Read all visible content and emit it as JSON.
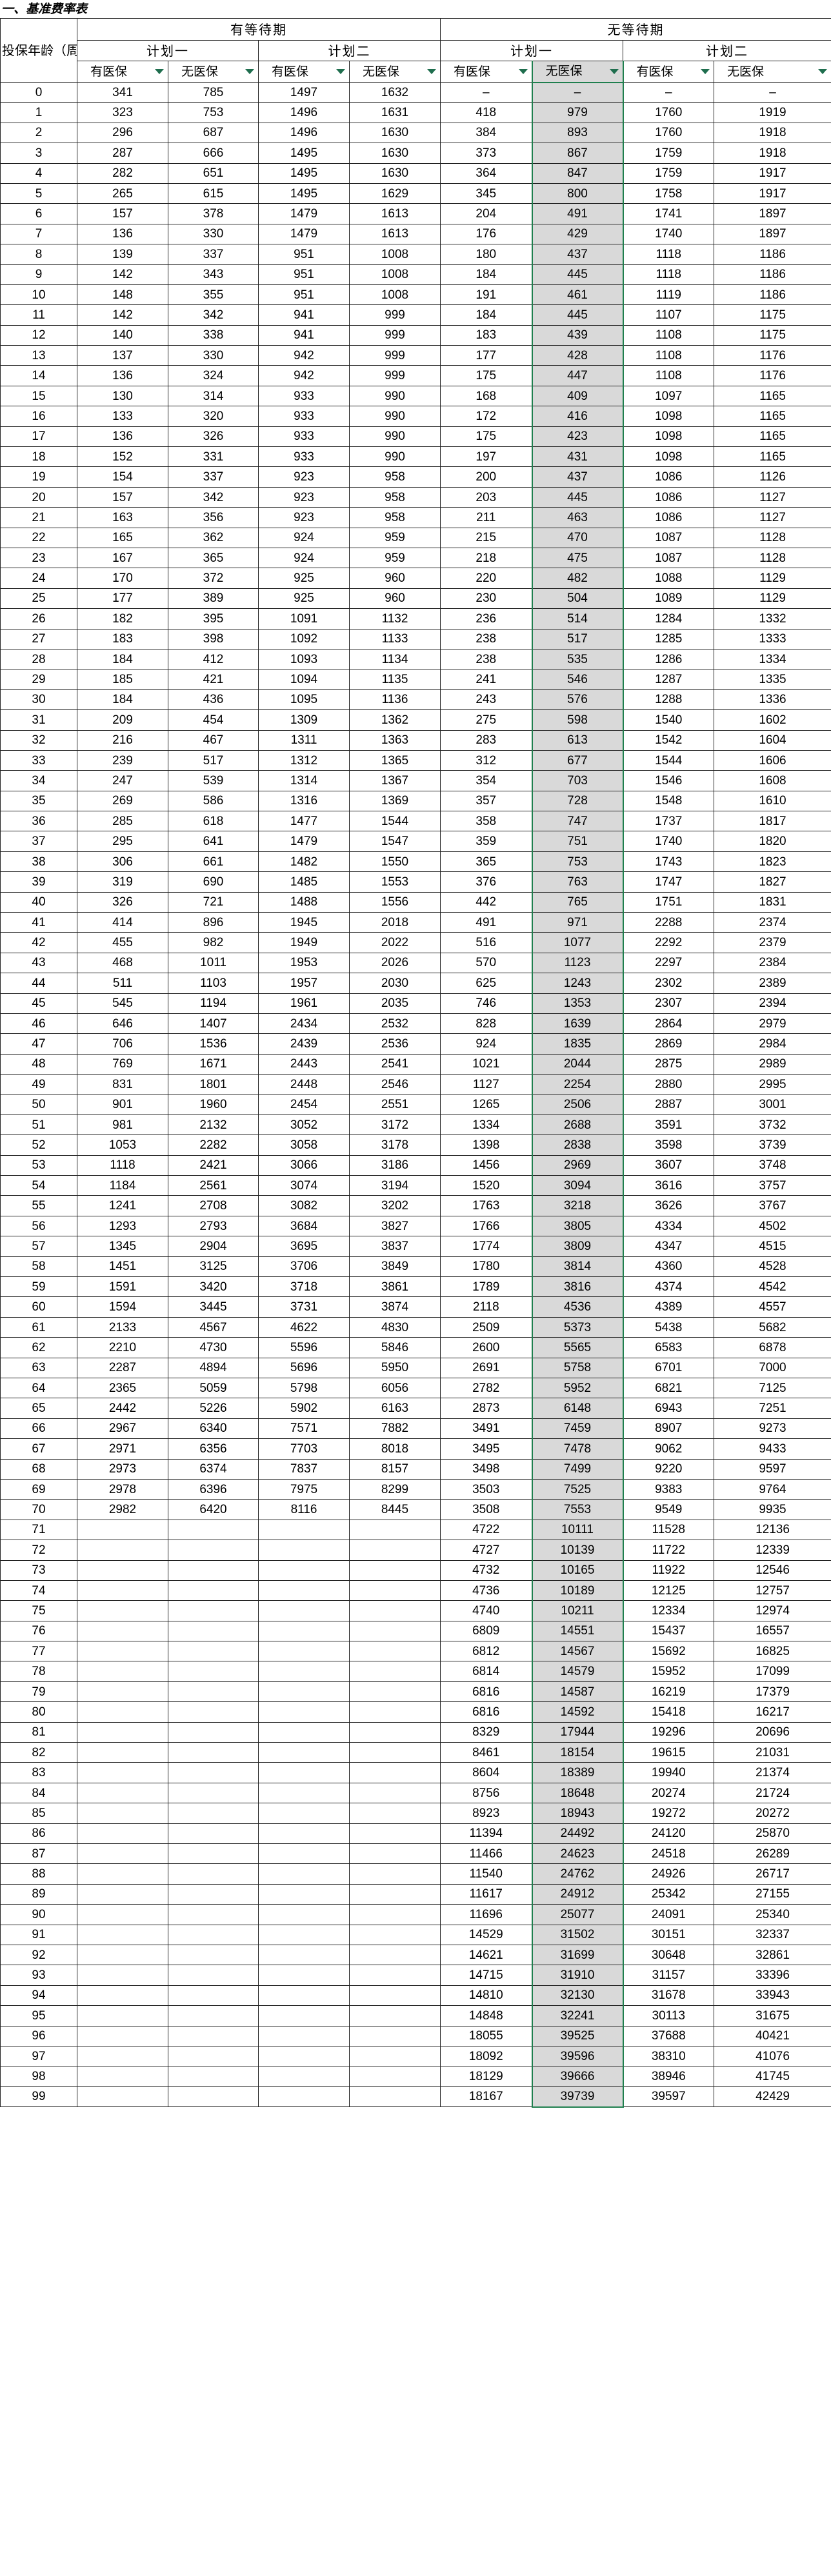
{
  "sheet": {
    "title": "一、基准费率表",
    "groups": [
      "有等待期",
      "无等待期"
    ],
    "plans": [
      "计划一",
      "计划二"
    ],
    "age_header": "投保年龄（周岁）",
    "sub_headers": [
      "有医保",
      "无医保"
    ]
  },
  "rows": [
    [
      "0",
      "341",
      "785",
      "1497",
      "1632",
      "–",
      "–",
      "–",
      "–"
    ],
    [
      "1",
      "323",
      "753",
      "1496",
      "1631",
      "418",
      "979",
      "1760",
      "1919"
    ],
    [
      "2",
      "296",
      "687",
      "1496",
      "1630",
      "384",
      "893",
      "1760",
      "1918"
    ],
    [
      "3",
      "287",
      "666",
      "1495",
      "1630",
      "373",
      "867",
      "1759",
      "1918"
    ],
    [
      "4",
      "282",
      "651",
      "1495",
      "1630",
      "364",
      "847",
      "1759",
      "1917"
    ],
    [
      "5",
      "265",
      "615",
      "1495",
      "1629",
      "345",
      "800",
      "1758",
      "1917"
    ],
    [
      "6",
      "157",
      "378",
      "1479",
      "1613",
      "204",
      "491",
      "1741",
      "1897"
    ],
    [
      "7",
      "136",
      "330",
      "1479",
      "1613",
      "176",
      "429",
      "1740",
      "1897"
    ],
    [
      "8",
      "139",
      "337",
      "951",
      "1008",
      "180",
      "437",
      "1118",
      "1186"
    ],
    [
      "9",
      "142",
      "343",
      "951",
      "1008",
      "184",
      "445",
      "1118",
      "1186"
    ],
    [
      "10",
      "148",
      "355",
      "951",
      "1008",
      "191",
      "461",
      "1119",
      "1186"
    ],
    [
      "11",
      "142",
      "342",
      "941",
      "999",
      "184",
      "445",
      "1107",
      "1175"
    ],
    [
      "12",
      "140",
      "338",
      "941",
      "999",
      "183",
      "439",
      "1108",
      "1175"
    ],
    [
      "13",
      "137",
      "330",
      "942",
      "999",
      "177",
      "428",
      "1108",
      "1176"
    ],
    [
      "14",
      "136",
      "324",
      "942",
      "999",
      "175",
      "447",
      "1108",
      "1176"
    ],
    [
      "15",
      "130",
      "314",
      "933",
      "990",
      "168",
      "409",
      "1097",
      "1165"
    ],
    [
      "16",
      "133",
      "320",
      "933",
      "990",
      "172",
      "416",
      "1098",
      "1165"
    ],
    [
      "17",
      "136",
      "326",
      "933",
      "990",
      "175",
      "423",
      "1098",
      "1165"
    ],
    [
      "18",
      "152",
      "331",
      "933",
      "990",
      "197",
      "431",
      "1098",
      "1165"
    ],
    [
      "19",
      "154",
      "337",
      "923",
      "958",
      "200",
      "437",
      "1086",
      "1126"
    ],
    [
      "20",
      "157",
      "342",
      "923",
      "958",
      "203",
      "445",
      "1086",
      "1127"
    ],
    [
      "21",
      "163",
      "356",
      "923",
      "958",
      "211",
      "463",
      "1086",
      "1127"
    ],
    [
      "22",
      "165",
      "362",
      "924",
      "959",
      "215",
      "470",
      "1087",
      "1128"
    ],
    [
      "23",
      "167",
      "365",
      "924",
      "959",
      "218",
      "475",
      "1087",
      "1128"
    ],
    [
      "24",
      "170",
      "372",
      "925",
      "960",
      "220",
      "482",
      "1088",
      "1129"
    ],
    [
      "25",
      "177",
      "389",
      "925",
      "960",
      "230",
      "504",
      "1089",
      "1129"
    ],
    [
      "26",
      "182",
      "395",
      "1091",
      "1132",
      "236",
      "514",
      "1284",
      "1332"
    ],
    [
      "27",
      "183",
      "398",
      "1092",
      "1133",
      "238",
      "517",
      "1285",
      "1333"
    ],
    [
      "28",
      "184",
      "412",
      "1093",
      "1134",
      "238",
      "535",
      "1286",
      "1334"
    ],
    [
      "29",
      "185",
      "421",
      "1094",
      "1135",
      "241",
      "546",
      "1287",
      "1335"
    ],
    [
      "30",
      "184",
      "436",
      "1095",
      "1136",
      "243",
      "576",
      "1288",
      "1336"
    ],
    [
      "31",
      "209",
      "454",
      "1309",
      "1362",
      "275",
      "598",
      "1540",
      "1602"
    ],
    [
      "32",
      "216",
      "467",
      "1311",
      "1363",
      "283",
      "613",
      "1542",
      "1604"
    ],
    [
      "33",
      "239",
      "517",
      "1312",
      "1365",
      "312",
      "677",
      "1544",
      "1606"
    ],
    [
      "34",
      "247",
      "539",
      "1314",
      "1367",
      "354",
      "703",
      "1546",
      "1608"
    ],
    [
      "35",
      "269",
      "586",
      "1316",
      "1369",
      "357",
      "728",
      "1548",
      "1610"
    ],
    [
      "36",
      "285",
      "618",
      "1477",
      "1544",
      "358",
      "747",
      "1737",
      "1817"
    ],
    [
      "37",
      "295",
      "641",
      "1479",
      "1547",
      "359",
      "751",
      "1740",
      "1820"
    ],
    [
      "38",
      "306",
      "661",
      "1482",
      "1550",
      "365",
      "753",
      "1743",
      "1823"
    ],
    [
      "39",
      "319",
      "690",
      "1485",
      "1553",
      "376",
      "763",
      "1747",
      "1827"
    ],
    [
      "40",
      "326",
      "721",
      "1488",
      "1556",
      "442",
      "765",
      "1751",
      "1831"
    ],
    [
      "41",
      "414",
      "896",
      "1945",
      "2018",
      "491",
      "971",
      "2288",
      "2374"
    ],
    [
      "42",
      "455",
      "982",
      "1949",
      "2022",
      "516",
      "1077",
      "2292",
      "2379"
    ],
    [
      "43",
      "468",
      "1011",
      "1953",
      "2026",
      "570",
      "1123",
      "2297",
      "2384"
    ],
    [
      "44",
      "511",
      "1103",
      "1957",
      "2030",
      "625",
      "1243",
      "2302",
      "2389"
    ],
    [
      "45",
      "545",
      "1194",
      "1961",
      "2035",
      "746",
      "1353",
      "2307",
      "2394"
    ],
    [
      "46",
      "646",
      "1407",
      "2434",
      "2532",
      "828",
      "1639",
      "2864",
      "2979"
    ],
    [
      "47",
      "706",
      "1536",
      "2439",
      "2536",
      "924",
      "1835",
      "2869",
      "2984"
    ],
    [
      "48",
      "769",
      "1671",
      "2443",
      "2541",
      "1021",
      "2044",
      "2875",
      "2989"
    ],
    [
      "49",
      "831",
      "1801",
      "2448",
      "2546",
      "1127",
      "2254",
      "2880",
      "2995"
    ],
    [
      "50",
      "901",
      "1960",
      "2454",
      "2551",
      "1265",
      "2506",
      "2887",
      "3001"
    ],
    [
      "51",
      "981",
      "2132",
      "3052",
      "3172",
      "1334",
      "2688",
      "3591",
      "3732"
    ],
    [
      "52",
      "1053",
      "2282",
      "3058",
      "3178",
      "1398",
      "2838",
      "3598",
      "3739"
    ],
    [
      "53",
      "1118",
      "2421",
      "3066",
      "3186",
      "1456",
      "2969",
      "3607",
      "3748"
    ],
    [
      "54",
      "1184",
      "2561",
      "3074",
      "3194",
      "1520",
      "3094",
      "3616",
      "3757"
    ],
    [
      "55",
      "1241",
      "2708",
      "3082",
      "3202",
      "1763",
      "3218",
      "3626",
      "3767"
    ],
    [
      "56",
      "1293",
      "2793",
      "3684",
      "3827",
      "1766",
      "3805",
      "4334",
      "4502"
    ],
    [
      "57",
      "1345",
      "2904",
      "3695",
      "3837",
      "1774",
      "3809",
      "4347",
      "4515"
    ],
    [
      "58",
      "1451",
      "3125",
      "3706",
      "3849",
      "1780",
      "3814",
      "4360",
      "4528"
    ],
    [
      "59",
      "1591",
      "3420",
      "3718",
      "3861",
      "1789",
      "3816",
      "4374",
      "4542"
    ],
    [
      "60",
      "1594",
      "3445",
      "3731",
      "3874",
      "2118",
      "4536",
      "4389",
      "4557"
    ],
    [
      "61",
      "2133",
      "4567",
      "4622",
      "4830",
      "2509",
      "5373",
      "5438",
      "5682"
    ],
    [
      "62",
      "2210",
      "4730",
      "5596",
      "5846",
      "2600",
      "5565",
      "6583",
      "6878"
    ],
    [
      "63",
      "2287",
      "4894",
      "5696",
      "5950",
      "2691",
      "5758",
      "6701",
      "7000"
    ],
    [
      "64",
      "2365",
      "5059",
      "5798",
      "6056",
      "2782",
      "5952",
      "6821",
      "7125"
    ],
    [
      "65",
      "2442",
      "5226",
      "5902",
      "6163",
      "2873",
      "6148",
      "6943",
      "7251"
    ],
    [
      "66",
      "2967",
      "6340",
      "7571",
      "7882",
      "3491",
      "7459",
      "8907",
      "9273"
    ],
    [
      "67",
      "2971",
      "6356",
      "7703",
      "8018",
      "3495",
      "7478",
      "9062",
      "9433"
    ],
    [
      "68",
      "2973",
      "6374",
      "7837",
      "8157",
      "3498",
      "7499",
      "9220",
      "9597"
    ],
    [
      "69",
      "2978",
      "6396",
      "7975",
      "8299",
      "3503",
      "7525",
      "9383",
      "9764"
    ],
    [
      "70",
      "2982",
      "6420",
      "8116",
      "8445",
      "3508",
      "7553",
      "9549",
      "9935"
    ],
    [
      "71",
      "",
      "",
      "",
      "",
      "4722",
      "10111",
      "11528",
      "12136"
    ],
    [
      "72",
      "",
      "",
      "",
      "",
      "4727",
      "10139",
      "11722",
      "12339"
    ],
    [
      "73",
      "",
      "",
      "",
      "",
      "4732",
      "10165",
      "11922",
      "12546"
    ],
    [
      "74",
      "",
      "",
      "",
      "",
      "4736",
      "10189",
      "12125",
      "12757"
    ],
    [
      "75",
      "",
      "",
      "",
      "",
      "4740",
      "10211",
      "12334",
      "12974"
    ],
    [
      "76",
      "",
      "",
      "",
      "",
      "6809",
      "14551",
      "15437",
      "16557"
    ],
    [
      "77",
      "",
      "",
      "",
      "",
      "6812",
      "14567",
      "15692",
      "16825"
    ],
    [
      "78",
      "",
      "",
      "",
      "",
      "6814",
      "14579",
      "15952",
      "17099"
    ],
    [
      "79",
      "",
      "",
      "",
      "",
      "6816",
      "14587",
      "16219",
      "17379"
    ],
    [
      "80",
      "",
      "",
      "",
      "",
      "6816",
      "14592",
      "15418",
      "16217"
    ],
    [
      "81",
      "",
      "",
      "",
      "",
      "8329",
      "17944",
      "19296",
      "20696"
    ],
    [
      "82",
      "",
      "",
      "",
      "",
      "8461",
      "18154",
      "19615",
      "21031"
    ],
    [
      "83",
      "",
      "",
      "",
      "",
      "8604",
      "18389",
      "19940",
      "21374"
    ],
    [
      "84",
      "",
      "",
      "",
      "",
      "8756",
      "18648",
      "20274",
      "21724"
    ],
    [
      "85",
      "",
      "",
      "",
      "",
      "8923",
      "18943",
      "19272",
      "20272"
    ],
    [
      "86",
      "",
      "",
      "",
      "",
      "11394",
      "24492",
      "24120",
      "25870"
    ],
    [
      "87",
      "",
      "",
      "",
      "",
      "11466",
      "24623",
      "24518",
      "26289"
    ],
    [
      "88",
      "",
      "",
      "",
      "",
      "11540",
      "24762",
      "24926",
      "26717"
    ],
    [
      "89",
      "",
      "",
      "",
      "",
      "11617",
      "24912",
      "25342",
      "27155"
    ],
    [
      "90",
      "",
      "",
      "",
      "",
      "11696",
      "25077",
      "24091",
      "25340"
    ],
    [
      "91",
      "",
      "",
      "",
      "",
      "14529",
      "31502",
      "30151",
      "32337"
    ],
    [
      "92",
      "",
      "",
      "",
      "",
      "14621",
      "31699",
      "30648",
      "32861"
    ],
    [
      "93",
      "",
      "",
      "",
      "",
      "14715",
      "31910",
      "31157",
      "33396"
    ],
    [
      "94",
      "",
      "",
      "",
      "",
      "14810",
      "32130",
      "31678",
      "33943"
    ],
    [
      "95",
      "",
      "",
      "",
      "",
      "14848",
      "32241",
      "30113",
      "31675"
    ],
    [
      "96",
      "",
      "",
      "",
      "",
      "18055",
      "39525",
      "37688",
      "40421"
    ],
    [
      "97",
      "",
      "",
      "",
      "",
      "18092",
      "39596",
      "38310",
      "41076"
    ],
    [
      "98",
      "",
      "",
      "",
      "",
      "18129",
      "39666",
      "38946",
      "41745"
    ],
    [
      "99",
      "",
      "",
      "",
      "",
      "18167",
      "39739",
      "39597",
      "42429"
    ]
  ],
  "selected_column": 6,
  "colors": {
    "selection_border": "#1f7f4e",
    "selection_fill": "#d9d9d9",
    "filter_arrow": "#1f6e4e",
    "grid": "#222222"
  },
  "icons": {
    "filter": "filter-dropdown-arrow-icon"
  }
}
